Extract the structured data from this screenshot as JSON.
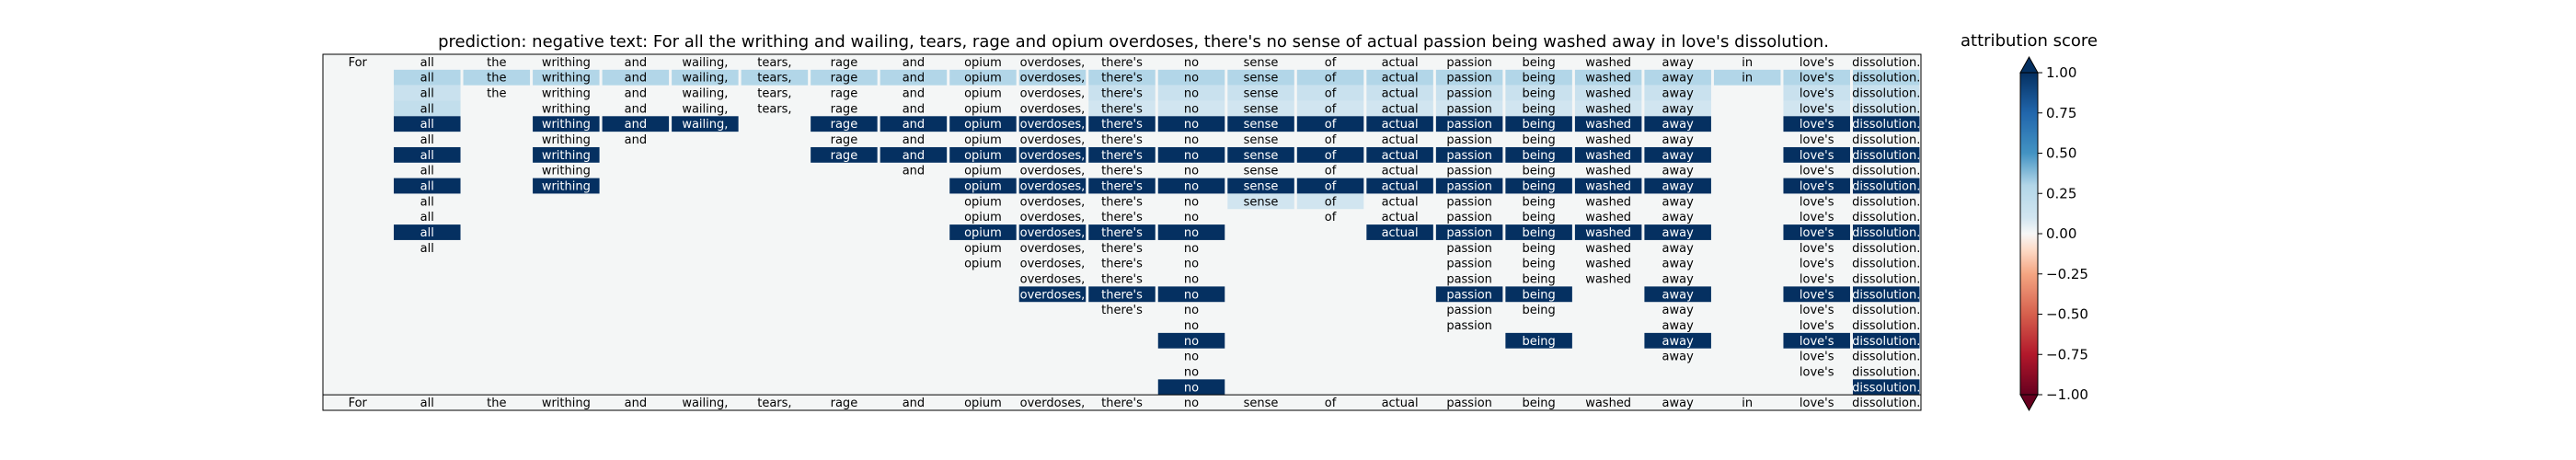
{
  "figure": {
    "title": "prediction:  negative     text:  For all the writhing and wailing, tears, rage and opium overdoses, there's no sense of actual passion being washed away in love's dissolution."
  },
  "chart_data": {
    "type": "heatmap",
    "tokens": [
      "For",
      "all",
      "the",
      "writhing",
      "and",
      "wailing,",
      "tears,",
      "rage",
      "and",
      "opium",
      "overdoses,",
      "there's",
      "no",
      "sense",
      "of",
      "actual",
      "passion",
      "being",
      "washed",
      "away",
      "in",
      "love's",
      "dissolution."
    ],
    "rows": [
      {
        "shown": [
          0,
          1,
          2,
          3,
          4,
          5,
          6,
          7,
          8,
          9,
          10,
          11,
          12,
          13,
          14,
          15,
          16,
          17,
          18,
          19,
          20,
          21,
          22
        ],
        "scores": {}
      },
      {
        "shown": [
          1,
          2,
          3,
          4,
          5,
          6,
          7,
          8,
          9,
          10,
          11,
          12,
          13,
          14,
          15,
          16,
          17,
          18,
          19,
          20,
          21,
          22
        ],
        "scores": {
          "1": 0.3,
          "2": 0.3,
          "3": 0.3,
          "4": 0.3,
          "5": 0.3,
          "6": 0.3,
          "7": 0.3,
          "8": 0.3,
          "9": 0.3,
          "10": 0.3,
          "11": 0.3,
          "12": 0.3,
          "13": 0.3,
          "14": 0.3,
          "15": 0.3,
          "16": 0.3,
          "17": 0.3,
          "18": 0.3,
          "19": 0.3,
          "20": 0.3,
          "21": 0.3,
          "22": 0.3
        }
      },
      {
        "shown": [
          1,
          2,
          3,
          4,
          5,
          6,
          7,
          8,
          9,
          10,
          11,
          12,
          13,
          14,
          15,
          16,
          17,
          18,
          19,
          21,
          22
        ],
        "scores": {
          "1": 0.15,
          "11": 0.15,
          "12": 0.15,
          "13": 0.15,
          "14": 0.15,
          "15": 0.15,
          "16": 0.15,
          "17": 0.15,
          "18": 0.15,
          "19": 0.15,
          "21": 0.15,
          "22": 0.15
        }
      },
      {
        "shown": [
          1,
          3,
          4,
          5,
          6,
          7,
          8,
          9,
          10,
          11,
          12,
          13,
          14,
          15,
          16,
          17,
          18,
          19,
          21,
          22
        ],
        "scores": {
          "1": 0.2,
          "11": 0.1,
          "12": 0.1,
          "13": 0.1,
          "14": 0.1,
          "15": 0.1,
          "16": 0.1,
          "17": 0.1,
          "18": 0.1,
          "19": 0.1,
          "21": 0.1,
          "22": 0.1
        }
      },
      {
        "shown": [
          1,
          3,
          4,
          5,
          7,
          8,
          9,
          10,
          11,
          12,
          13,
          14,
          15,
          16,
          17,
          18,
          19,
          21,
          22
        ],
        "scores": {
          "1": 1,
          "3": 1,
          "4": 1,
          "5": 1,
          "7": 1,
          "8": 1,
          "9": 1,
          "10": 1,
          "11": 1,
          "12": 1,
          "13": 1,
          "14": 1,
          "15": 1,
          "16": 1,
          "17": 1,
          "18": 1,
          "19": 1,
          "21": 1,
          "22": 1
        }
      },
      {
        "shown": [
          1,
          3,
          4,
          7,
          8,
          9,
          10,
          11,
          12,
          13,
          14,
          15,
          16,
          17,
          18,
          19,
          21,
          22
        ],
        "scores": {}
      },
      {
        "shown": [
          1,
          3,
          7,
          8,
          9,
          10,
          11,
          12,
          13,
          14,
          15,
          16,
          17,
          18,
          19,
          21,
          22
        ],
        "scores": {
          "1": 1,
          "3": 1,
          "7": 1,
          "8": 1,
          "9": 1,
          "10": 1,
          "11": 1,
          "12": 1,
          "13": 1,
          "14": 1,
          "15": 1,
          "16": 1,
          "17": 1,
          "18": 1,
          "19": 1,
          "21": 1,
          "22": 1
        }
      },
      {
        "shown": [
          1,
          3,
          8,
          9,
          10,
          11,
          12,
          13,
          14,
          15,
          16,
          17,
          18,
          19,
          21,
          22
        ],
        "scores": {}
      },
      {
        "shown": [
          1,
          3,
          9,
          10,
          11,
          12,
          13,
          14,
          15,
          16,
          17,
          18,
          19,
          21,
          22
        ],
        "scores": {
          "1": 1,
          "3": 1,
          "9": 1,
          "10": 1,
          "11": 1,
          "12": 1,
          "13": 1,
          "14": 1,
          "15": 1,
          "16": 1,
          "17": 1,
          "18": 1,
          "19": 1,
          "21": 1,
          "22": 1
        }
      },
      {
        "shown": [
          1,
          9,
          10,
          11,
          12,
          13,
          14,
          15,
          16,
          17,
          18,
          19,
          21,
          22
        ],
        "scores": {
          "13": 0.1,
          "14": 0.1
        }
      },
      {
        "shown": [
          1,
          9,
          10,
          11,
          12,
          14,
          15,
          16,
          17,
          18,
          19,
          21,
          22
        ],
        "scores": {}
      },
      {
        "shown": [
          1,
          9,
          10,
          11,
          12,
          15,
          16,
          17,
          18,
          19,
          21,
          22
        ],
        "scores": {
          "1": 1,
          "9": 1,
          "10": 1,
          "11": 1,
          "12": 1,
          "15": 1,
          "16": 1,
          "17": 1,
          "18": 1,
          "19": 1,
          "21": 1,
          "22": 1
        }
      },
      {
        "shown": [
          1,
          9,
          10,
          11,
          12,
          16,
          17,
          18,
          19,
          21,
          22
        ],
        "scores": {}
      },
      {
        "shown": [
          9,
          10,
          11,
          12,
          16,
          17,
          18,
          19,
          21,
          22
        ],
        "scores": {}
      },
      {
        "shown": [
          10,
          11,
          12,
          16,
          17,
          18,
          19,
          21,
          22
        ],
        "scores": {}
      },
      {
        "shown": [
          10,
          11,
          12,
          16,
          17,
          19,
          21,
          22
        ],
        "scores": {
          "10": 1,
          "11": 1,
          "12": 1,
          "16": 1,
          "17": 1,
          "19": 1,
          "21": 1,
          "22": 1
        }
      },
      {
        "shown": [
          11,
          12,
          16,
          17,
          19,
          21,
          22
        ],
        "scores": {}
      },
      {
        "shown": [
          12,
          16,
          19,
          21,
          22
        ],
        "scores": {}
      },
      {
        "shown": [
          12,
          17,
          19,
          21,
          22
        ],
        "scores": {
          "12": 1,
          "17": 1,
          "19": 1,
          "21": 1,
          "22": 1
        }
      },
      {
        "shown": [
          12,
          19,
          21,
          22
        ],
        "scores": {}
      },
      {
        "shown": [
          12,
          21,
          22
        ],
        "scores": {}
      },
      {
        "shown": [
          12,
          22
        ],
        "scores": {
          "12": 1,
          "22": 1
        }
      },
      {
        "shown": [
          0,
          1,
          2,
          3,
          4,
          5,
          6,
          7,
          8,
          9,
          10,
          11,
          12,
          13,
          14,
          15,
          16,
          17,
          18,
          19,
          20,
          21,
          22
        ],
        "scores": {}
      }
    ],
    "colorbar": {
      "label": "attribution score",
      "range": [
        -1,
        1
      ],
      "ticks": [
        "1.00",
        "0.75",
        "0.50",
        "0.25",
        "0.00",
        "−0.25",
        "−0.50",
        "−0.75",
        "−1.00"
      ],
      "tick_values": [
        1,
        0.75,
        0.5,
        0.25,
        0,
        -0.25,
        -0.5,
        -0.75,
        -1
      ],
      "colormap": "RdBu",
      "colors": {
        "neg": "#67001f",
        "mid": "#f7f7f7",
        "pos": "#053061"
      }
    },
    "background": "#f4f6f6"
  }
}
